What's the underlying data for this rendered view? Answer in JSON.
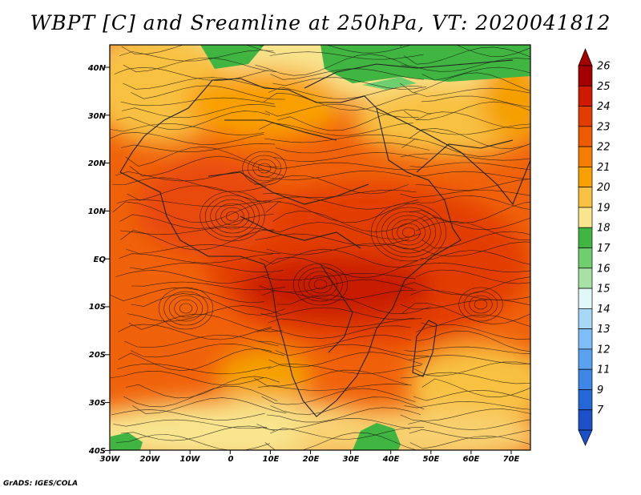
{
  "title": "WBPT [C] and Sreamline at 250hPa, VT: 2020041812",
  "credit": "GrADS: IGES/COLA",
  "map": {
    "lat_labels": [
      "40N",
      "30N",
      "20N",
      "10N",
      "EQ",
      "10S",
      "20S",
      "30S",
      "40S"
    ],
    "lon_labels": [
      "30W",
      "20W",
      "10W",
      "0",
      "10E",
      "20E",
      "30E",
      "40E",
      "50E",
      "60E",
      "70E"
    ]
  },
  "colorbar": {
    "levels": [
      "26",
      "25",
      "24",
      "23",
      "22",
      "21",
      "20",
      "19",
      "18",
      "17",
      "16",
      "15",
      "14",
      "13",
      "12",
      "11",
      "9",
      "7"
    ],
    "colors": [
      "#a50000",
      "#d01a00",
      "#e23c00",
      "#ee5a00",
      "#f57d00",
      "#f9a000",
      "#f8c142",
      "#f8e58e",
      "#41b541",
      "#6fcf6f",
      "#a6e2a6",
      "#e1f8f8",
      "#a8d8f8",
      "#7ebef8",
      "#5aa2f0",
      "#3d86e6",
      "#2468d8",
      "#1c50c8"
    ]
  }
}
